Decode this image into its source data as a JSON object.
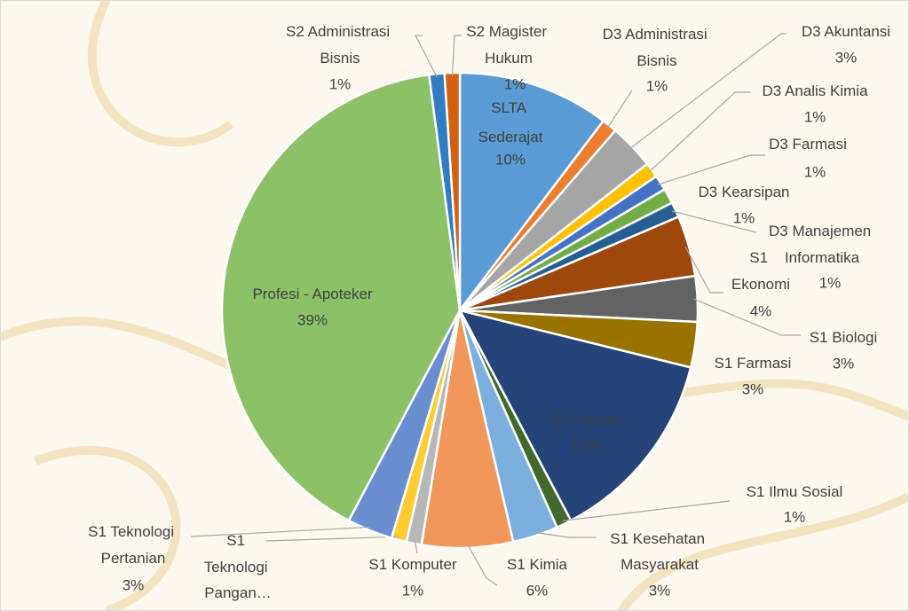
{
  "chart_data": {
    "type": "pie",
    "categories": [
      "SLTA Sederajat",
      "D3 Administrasi Bisnis",
      "D3 Akuntansi",
      "D3 Analis Kimia",
      "D3 Farmasi",
      "D3 Kearsipan",
      "D3 Manajemen Informatika",
      "S1 Ekonomi",
      "S1 Biologi",
      "S1 Farmasi",
      "S1 Hukum",
      "S1 Ilmu Sosial",
      "S1 Kesehatan Masyarakat",
      "S1 Kimia",
      "S1 Komputer",
      "S1 Teknologi Pangan…",
      "S1 Teknologi Pertanian",
      "Profesi - Apoteker",
      "S2 Administrasi Bisnis",
      "S2 Magister Hukum"
    ],
    "values": [
      10,
      1,
      3,
      1,
      1,
      1,
      1,
      4,
      3,
      3,
      13,
      1,
      3,
      6,
      1,
      1,
      3,
      39,
      1,
      1
    ],
    "value_labels": [
      "10%",
      "1%",
      "3%",
      "1%",
      "1%",
      "1%",
      "1%",
      "4%",
      "3%",
      "3%",
      "13%",
      "1%",
      "3%",
      "6%",
      "1%",
      null,
      "3%",
      "39%",
      "1%",
      "1%"
    ],
    "colors": [
      "#5b9bd5",
      "#ed7d31",
      "#a5a5a5",
      "#ffc000",
      "#4472c4",
      "#70ad47",
      "#255e91",
      "#9e480e",
      "#636363",
      "#997300",
      "#264478",
      "#43682b",
      "#7cafdd",
      "#f1975a",
      "#b7b7b7",
      "#ffcd33",
      "#698ed0",
      "#8cc168",
      "#327dc2",
      "#d26012"
    ]
  }
}
